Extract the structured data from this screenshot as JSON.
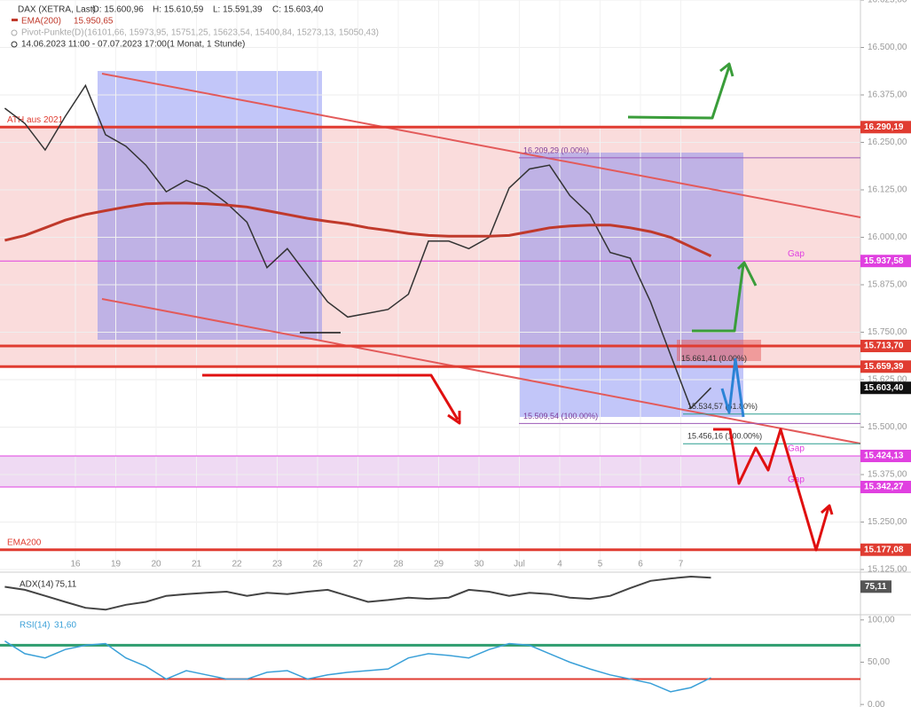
{
  "chart_data": [
    {
      "type": "line",
      "title": "DAX (XETRA, Last)",
      "ohlc": [
        "O: 15.600,96",
        "H: 15.610,59",
        "L: 15.591,39",
        "C: 15.603,40"
      ],
      "ema_label": "15.950,65",
      "pivot_name": "Pivot-Punkte(D)",
      "pivot_values": "(16101,66, 15973,95, 15751,25, 15623,54, 15400,84, 15273,13, 15050,43)",
      "range": "14.06.2023 11:00 - 07.07.2023 17:00",
      "period": "(1 Monat, 1 Stunde)",
      "last_label": "15.603,40",
      "categories": [
        null,
        null,
        null,
        null,
        "16",
        null,
        "19",
        null,
        "20",
        null,
        "21",
        null,
        "22",
        null,
        "23",
        null,
        "26",
        null,
        "27",
        null,
        "28",
        null,
        "29",
        null,
        "30",
        null,
        "Jul",
        null,
        "4",
        null,
        "5",
        null,
        "6",
        null,
        "7",
        null
      ],
      "series": [
        {
          "name": "DAX (XETRA, Last)",
          "color": "#333333",
          "values": [
            16340,
            16300,
            16230,
            16318,
            16400,
            16270,
            16240,
            16190,
            16120,
            16150,
            16130,
            16090,
            16040,
            15920,
            15970,
            15900,
            15830,
            15790,
            15800,
            15810,
            15850,
            15990,
            15990,
            15970,
            16000,
            16130,
            16180,
            16190,
            16110,
            16060,
            15960,
            15945,
            15830,
            15690,
            15550,
            15603.4
          ]
        },
        {
          "name": "EMA(200)",
          "color": "#c0392b",
          "values": [
            15992,
            16005,
            16025,
            16045,
            16060,
            16070,
            16080,
            16088,
            16090,
            16090,
            16088,
            16085,
            16080,
            16070,
            16060,
            16050,
            16042,
            16035,
            16025,
            16018,
            16010,
            16005,
            16003,
            16003,
            16003,
            16005,
            16015,
            16025,
            16030,
            16032,
            16032,
            16025,
            16015,
            16000,
            15975,
            15950.65
          ]
        }
      ],
      "ylim": [
        15125,
        16625
      ],
      "yticks": [
        {
          "value": 15125,
          "label": "15.125,00"
        },
        {
          "value": 15250,
          "label": "15.250,00"
        },
        {
          "value": 15375,
          "label": "15.375,00"
        },
        {
          "value": 15500,
          "label": "15.500,00"
        },
        {
          "value": 15625,
          "label": "15.625,00"
        },
        {
          "value": 15750,
          "label": "15.750,00"
        },
        {
          "value": 15875,
          "label": "15.875,00"
        },
        {
          "value": 16000,
          "label": "16.000,00"
        },
        {
          "value": 16125,
          "label": "16.125,00"
        },
        {
          "value": 16250,
          "label": "16.250,00"
        },
        {
          "value": 16375,
          "label": "16.375,00"
        },
        {
          "value": 16500,
          "label": "16.500,00"
        },
        {
          "value": 16625,
          "label": "16.625,00"
        }
      ],
      "levels": [
        {
          "value": 16290.19,
          "label": "16.290,19",
          "color": "#e03c31",
          "text": "ATH aus 2021"
        },
        {
          "value": 15937.58,
          "label": "15.937,58",
          "color": "#e040e0",
          "text": "Gap"
        },
        {
          "value": 15713.7,
          "label": "15.713,70",
          "color": "#e03c31"
        },
        {
          "value": 15659.39,
          "label": "15.659,39",
          "color": "#e03c31"
        },
        {
          "value": 15424.13,
          "label": "15.424,13",
          "color": "#e040e0",
          "text": "Gap"
        },
        {
          "value": 15342.27,
          "label": "15.342,27",
          "color": "#e040e0",
          "text": "Gap"
        },
        {
          "value": 15177.08,
          "label": "15.177,08",
          "color": "#e03c31",
          "text": "EMA200"
        }
      ],
      "fib": [
        {
          "value": 16209.29,
          "label": "16.209,29 (0.00%)"
        },
        {
          "value": 15509.54,
          "label": "15.509,54 (100.00%)"
        },
        {
          "value": 15661.41,
          "label": "15.661,41 (0.00%)"
        },
        {
          "value": 15534.57,
          "label": "15.534,57 (61.80%)"
        },
        {
          "value": 15456.16,
          "label": "15.456,16 (100.00%)"
        }
      ],
      "grid": true
    },
    {
      "type": "line",
      "title": "ADX(14)",
      "value_label": "75,11",
      "color": "#444444",
      "values": [
        60,
        55,
        45,
        35,
        25,
        22,
        30,
        35,
        45,
        48,
        50,
        52,
        45,
        50,
        48,
        52,
        55,
        45,
        35,
        38,
        42,
        40,
        42,
        55,
        52,
        45,
        50,
        48,
        42,
        40,
        45,
        58,
        70,
        74,
        77,
        75.11
      ],
      "ylim": [
        15,
        80
      ]
    },
    {
      "type": "line",
      "title": "RSI(14)",
      "value_label": "31,60",
      "color": "#3aa0d8",
      "values": [
        75,
        60,
        55,
        65,
        70,
        72,
        55,
        45,
        30,
        40,
        35,
        30,
        30,
        38,
        40,
        30,
        35,
        38,
        40,
        42,
        55,
        60,
        58,
        55,
        65,
        72,
        70,
        60,
        50,
        42,
        35,
        30,
        25,
        15,
        20,
        31.6
      ],
      "ylim": [
        -3,
        104
      ],
      "yticks": [
        {
          "value": 0,
          "label": "0,00"
        },
        {
          "value": 50,
          "label": "50,00"
        },
        {
          "value": 100,
          "label": "100,00"
        }
      ],
      "levels": [
        {
          "value": 70,
          "color": "#2e9d6e"
        },
        {
          "value": 30,
          "color": "#e03c31"
        }
      ]
    }
  ]
}
